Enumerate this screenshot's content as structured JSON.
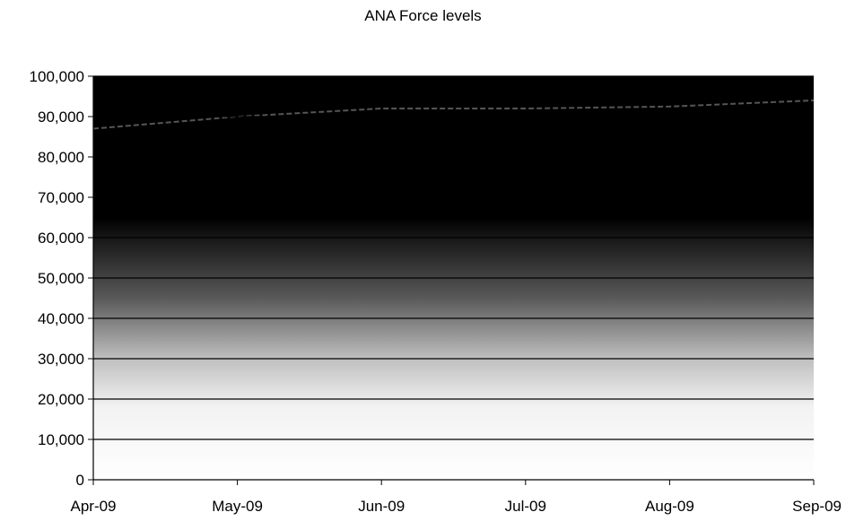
{
  "chart_data": {
    "type": "area",
    "title": "ANA Force levels",
    "xlabel": "",
    "ylabel": "",
    "categories": [
      "Apr-09",
      "May-09",
      "Jun-09",
      "Jul-09",
      "Aug-09",
      "Sep-09"
    ],
    "ylim": [
      0,
      100000
    ],
    "y_ticks": [
      "0",
      "10,000",
      "20,000",
      "30,000",
      "40,000",
      "50,000",
      "60,000",
      "70,000",
      "80,000",
      "90,000",
      "100,000"
    ],
    "y_tick_values": [
      0,
      10000,
      20000,
      30000,
      40000,
      50000,
      60000,
      70000,
      80000,
      90000,
      100000
    ],
    "series": [
      {
        "values": [
          87000,
          90000,
          92000,
          92000,
          92500,
          94000
        ]
      }
    ],
    "grid": true,
    "legend": "none",
    "colors": {
      "fill": "#000000",
      "line": "#555555",
      "grid": "#000000",
      "background": "#ffffff"
    }
  }
}
